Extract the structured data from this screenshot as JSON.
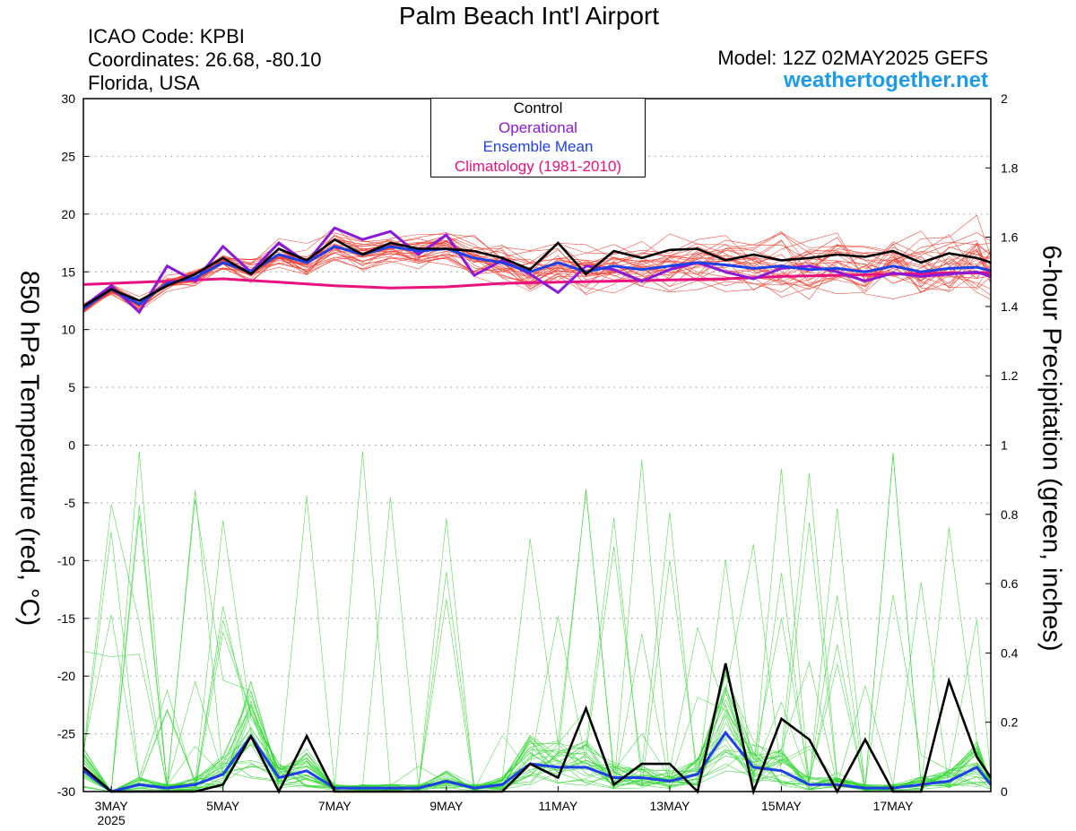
{
  "header": {
    "title": "Palm Beach Int'l Airport",
    "icao": "ICAO Code: KPBI",
    "coordinates": "Coordinates: 26.68, -80.10",
    "region": "Florida, USA",
    "model": "Model: 12Z 02MAY2025 GEFS",
    "site": "weathertogether.net"
  },
  "legend": {
    "items": [
      {
        "label": "Control",
        "color": "#000000"
      },
      {
        "label": "Operational",
        "color": "#8a1ad6"
      },
      {
        "label": "Ensemble Mean",
        "color": "#1f3fe8"
      },
      {
        "label": "Climatology (1981-2010)",
        "color": "#e8117f"
      }
    ]
  },
  "chart_data": {
    "type": "line",
    "ylabel_left": "850 hPa Temperature (red, °C)",
    "ylabel_right": "6-hour Precipitation (green, inches)",
    "y_left_range": [
      -30,
      30
    ],
    "y_left_ticks": [
      30,
      25,
      20,
      15,
      10,
      5,
      0,
      -5,
      -10,
      -15,
      -20,
      -25,
      -30
    ],
    "y_right_range": [
      0,
      2
    ],
    "y_right_ticks": [
      "2",
      "1.8",
      "1.6",
      "1.4",
      "1.2",
      "1",
      "0.8",
      "0.6",
      "0.4",
      "0.2",
      "0"
    ],
    "x_range": [
      2.5,
      18.75
    ],
    "x_ticks": [
      {
        "day": 3,
        "label": "3MAY"
      },
      {
        "day": 5,
        "label": "5MAY"
      },
      {
        "day": 7,
        "label": "7MAY"
      },
      {
        "day": 9,
        "label": "9MAY"
      },
      {
        "day": 11,
        "label": "11MAY"
      },
      {
        "day": 13,
        "label": "13MAY"
      },
      {
        "day": 15,
        "label": "15MAY"
      },
      {
        "day": 17,
        "label": "17MAY"
      }
    ],
    "x_year_label": "2025",
    "grid": true,
    "legend_position": "top-center",
    "temperature": {
      "control": {
        "x": [
          2.5,
          3,
          3.5,
          4,
          4.5,
          5,
          5.5,
          6,
          6.5,
          7,
          7.5,
          8,
          8.5,
          9,
          9.5,
          10,
          10.5,
          11,
          11.5,
          12,
          12.5,
          13,
          13.5,
          14,
          14.5,
          15,
          15.5,
          16,
          16.5,
          17,
          17.5,
          18,
          18.5,
          18.75
        ],
        "y": [
          12.0,
          13.5,
          12.5,
          13.8,
          14.8,
          16.2,
          14.8,
          17.0,
          16.0,
          17.8,
          16.5,
          17.5,
          17.0,
          17.0,
          16.8,
          16.2,
          15.2,
          17.5,
          14.8,
          16.8,
          16.2,
          16.9,
          17.0,
          16.0,
          16.5,
          16.0,
          16.2,
          16.5,
          16.3,
          16.8,
          15.8,
          16.6,
          16.2,
          15.8
        ]
      },
      "operational": {
        "x": [
          2.5,
          3,
          3.5,
          4,
          4.5,
          5,
          5.5,
          6,
          6.5,
          7,
          7.5,
          8,
          8.5,
          9,
          9.5,
          10,
          10.5,
          11,
          11.5,
          12,
          12.5,
          13,
          13.5,
          14,
          14.5,
          15,
          15.5,
          16,
          16.5,
          17,
          17.5,
          18,
          18.5,
          18.75
        ],
        "y": [
          12.0,
          13.8,
          11.5,
          15.5,
          14.2,
          17.2,
          15.0,
          17.5,
          15.8,
          18.8,
          17.8,
          18.5,
          16.5,
          18.2,
          14.7,
          16.0,
          14.8,
          13.2,
          15.5,
          15.2,
          14.2,
          15.2,
          15.8,
          15.0,
          14.4,
          15.3,
          15.5,
          15.0,
          14.2,
          14.9,
          14.6,
          14.8,
          15.0,
          14.6
        ]
      },
      "ensemble_mean": {
        "x": [
          2.5,
          3,
          3.5,
          4,
          4.5,
          5,
          5.5,
          6,
          6.5,
          7,
          7.5,
          8,
          8.5,
          9,
          9.5,
          10,
          10.5,
          11,
          11.5,
          12,
          12.5,
          13,
          13.5,
          14,
          14.5,
          15,
          15.5,
          16,
          16.5,
          17,
          17.5,
          18,
          18.5,
          18.75
        ],
        "y": [
          11.8,
          13.5,
          12.2,
          14.0,
          14.5,
          15.8,
          15.0,
          16.5,
          15.8,
          17.2,
          16.5,
          17.2,
          16.8,
          17.0,
          16.2,
          15.8,
          15.0,
          15.8,
          15.0,
          15.5,
          15.2,
          15.5,
          15.8,
          15.6,
          15.3,
          15.5,
          15.2,
          15.3,
          15.0,
          15.5,
          15.0,
          15.3,
          15.4,
          15.1
        ]
      },
      "climatology": {
        "x": [
          2.5,
          3,
          4,
          5,
          6,
          7,
          8,
          9,
          10,
          11,
          12,
          13,
          14,
          15,
          16,
          17,
          18,
          18.75
        ],
        "y": [
          13.9,
          14.0,
          14.2,
          14.4,
          14.1,
          13.8,
          13.6,
          13.7,
          14.0,
          14.1,
          14.2,
          14.3,
          14.4,
          14.6,
          14.7,
          14.8,
          14.9,
          14.9
        ]
      }
    },
    "precipitation": {
      "control": {
        "x": [
          2.5,
          3,
          3.5,
          4,
          4.5,
          5,
          5.5,
          6,
          6.5,
          7,
          7.5,
          8,
          8.5,
          9,
          9.5,
          10,
          10.5,
          11,
          11.5,
          12,
          12.5,
          13,
          13.5,
          14,
          14.5,
          15,
          15.5,
          16,
          16.5,
          17,
          17.5,
          18,
          18.5,
          18.75
        ],
        "y": [
          0.07,
          0,
          0,
          0,
          0,
          0.02,
          0.16,
          0,
          0.16,
          0,
          0,
          0,
          0,
          0,
          0,
          0,
          0.08,
          0.04,
          0.24,
          0.02,
          0.08,
          0.08,
          0,
          0.37,
          0,
          0.21,
          0.15,
          0,
          0.15,
          0,
          0,
          0.32,
          0.1,
          0.04
        ]
      },
      "ensemble_mean": {
        "x": [
          2.5,
          3,
          3.5,
          4,
          4.5,
          5,
          5.5,
          6,
          6.5,
          7,
          7.5,
          8,
          8.5,
          9,
          9.5,
          10,
          10.5,
          11,
          11.5,
          12,
          12.5,
          13,
          13.5,
          14,
          14.5,
          15,
          15.5,
          16,
          16.5,
          17,
          17.5,
          18,
          18.5,
          18.75
        ],
        "y": [
          0.06,
          0,
          0.02,
          0.01,
          0.02,
          0.05,
          0.16,
          0.04,
          0.06,
          0.01,
          0.01,
          0.01,
          0.01,
          0.03,
          0.01,
          0.02,
          0.08,
          0.07,
          0.07,
          0.04,
          0.04,
          0.03,
          0.05,
          0.17,
          0.07,
          0.06,
          0.02,
          0.02,
          0.01,
          0.01,
          0.02,
          0.03,
          0.07,
          0.02
        ]
      },
      "members_peak_max": 1.0
    }
  }
}
